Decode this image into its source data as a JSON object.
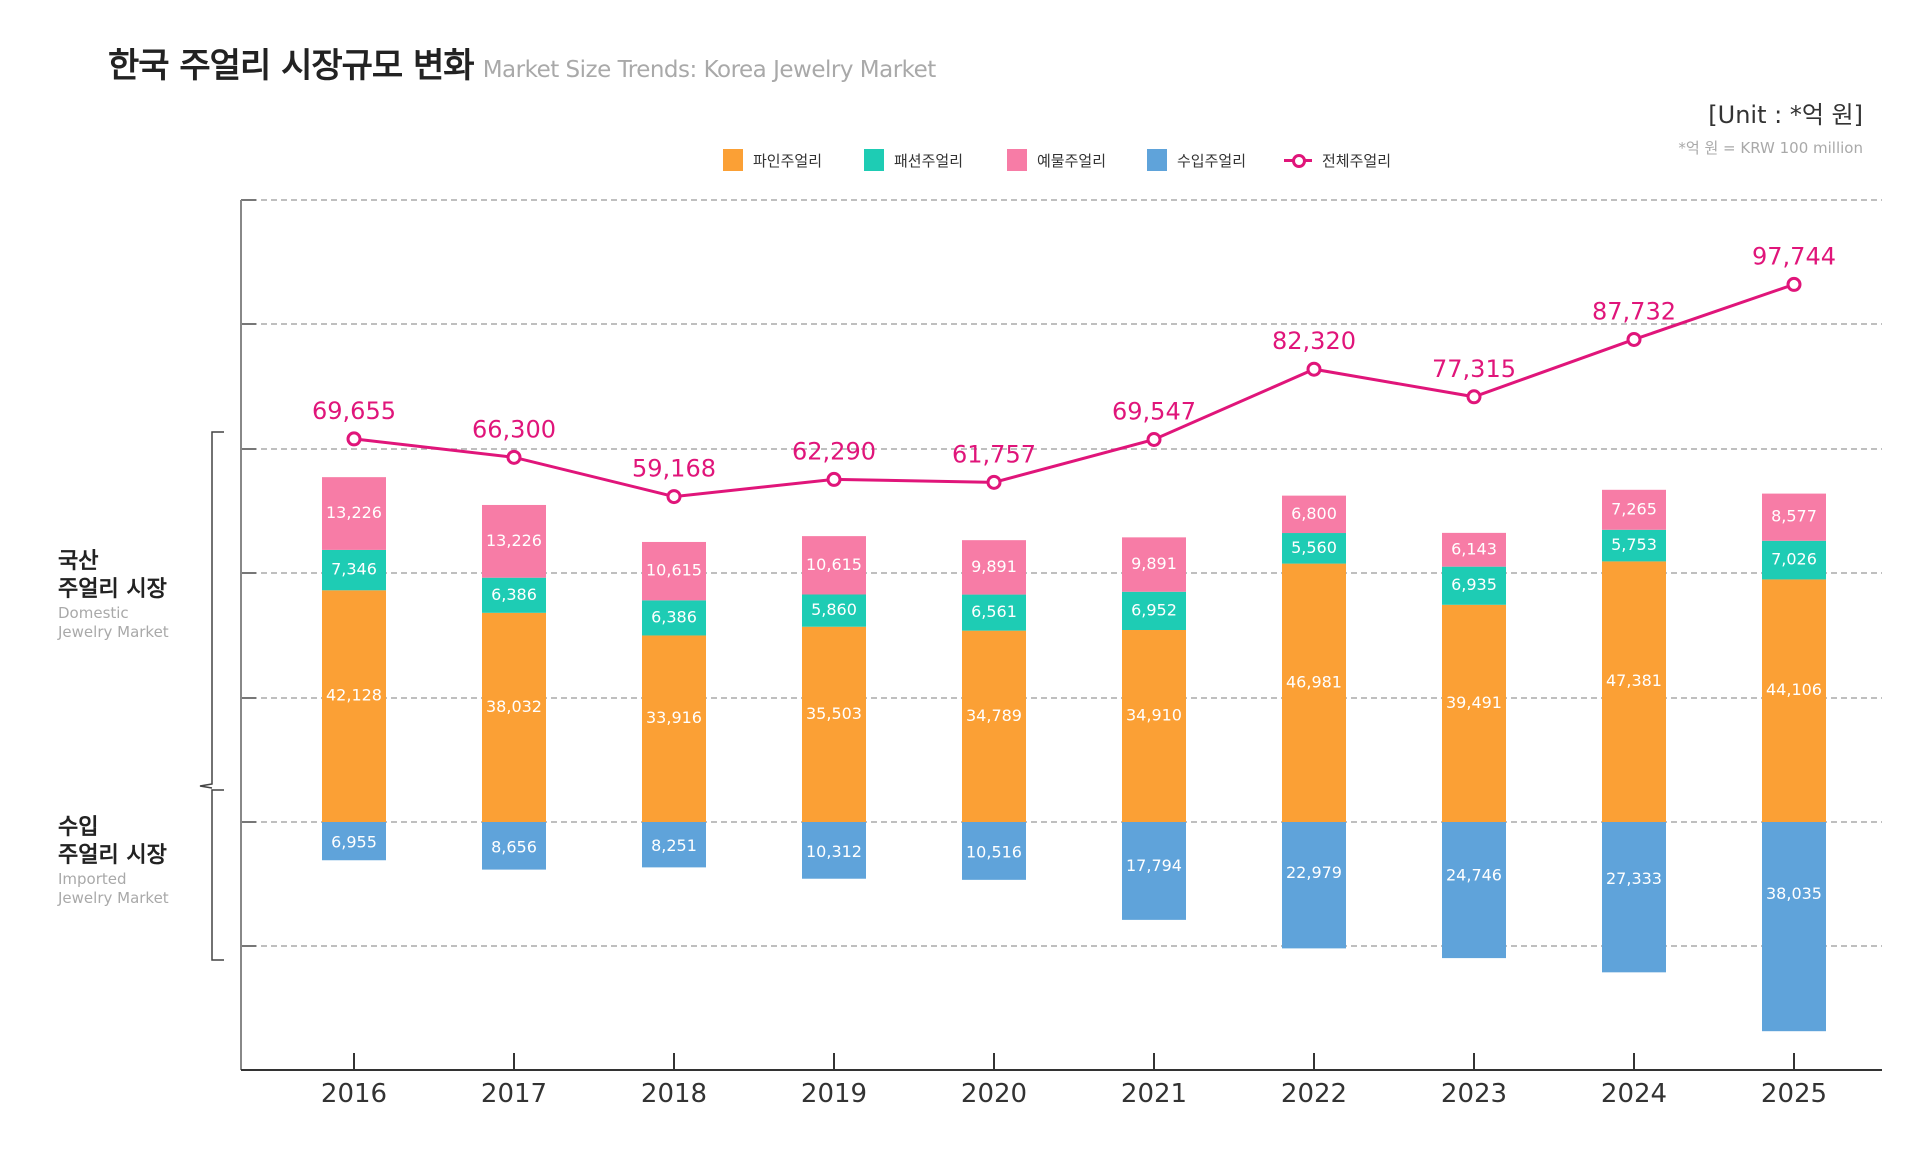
{
  "header": {
    "title_ko": "한국 주얼리 시장규모 변화",
    "title_en": "Market Size Trends: Korea Jewelry Market",
    "unit": "[Unit : *억 원]",
    "unit_note": "*억 원 = KRW 100 million"
  },
  "side_labels": {
    "domestic": {
      "ko_line1": "국산",
      "ko_line2": "주얼리 시장",
      "en_line1": "Domestic",
      "en_line2": "Jewelry Market"
    },
    "imported": {
      "ko_line1": "수입",
      "ko_line2": "주얼리 시장",
      "en_line1": "Imported",
      "en_line2": "Jewelry Market"
    }
  },
  "legend": [
    {
      "key": "fine",
      "label": "파인주얼리",
      "color": "#fba035",
      "type": "bar"
    },
    {
      "key": "fashion",
      "label": "패션주얼리",
      "color": "#1eccb4",
      "type": "bar"
    },
    {
      "key": "gift",
      "label": "예물주얼리",
      "color": "#f77ca6",
      "type": "bar"
    },
    {
      "key": "imported",
      "label": "수입주얼리",
      "color": "#5fa3da",
      "type": "bar"
    },
    {
      "key": "total",
      "label": "전체주얼리",
      "color": "#e0157a",
      "type": "line"
    }
  ],
  "chart_data": {
    "type": "bar",
    "subtype": "stacked bar (domestic above zero, imported below zero) with total line",
    "title": "한국 주얼리 시장규모 변화 — Market Size Trends: Korea Jewelry Market",
    "unit": "억 원 (KRW 100 million)",
    "categories": [
      "2016",
      "2017",
      "2018",
      "2019",
      "2020",
      "2021",
      "2022",
      "2023",
      "2024",
      "2025"
    ],
    "series": [
      {
        "name": "파인주얼리",
        "key": "fine",
        "values": [
          42128,
          38032,
          33916,
          35503,
          34789,
          34910,
          46981,
          39491,
          47381,
          44106
        ]
      },
      {
        "name": "패션주얼리",
        "key": "fashion",
        "values": [
          7346,
          6386,
          6386,
          5860,
          6561,
          6952,
          5560,
          6935,
          5753,
          7026
        ]
      },
      {
        "name": "예물주얼리",
        "key": "gift",
        "values": [
          13226,
          13226,
          10615,
          10615,
          9891,
          9891,
          6800,
          6143,
          7265,
          8577
        ]
      },
      {
        "name": "수입주얼리",
        "key": "imported",
        "values": [
          6955,
          8656,
          8251,
          10312,
          10516,
          17794,
          22979,
          24746,
          27333,
          38035
        ]
      },
      {
        "name": "전체주얼리",
        "key": "total",
        "type": "line",
        "values": [
          69655,
          66300,
          59168,
          62290,
          61757,
          69547,
          82320,
          77315,
          87732,
          97744
        ]
      }
    ],
    "value_labels": {
      "fine": [
        "42,128",
        "38,032",
        "33,916",
        "35,503",
        "34,789",
        "34,910",
        "46,981",
        "39,491",
        "47,381",
        "44,106"
      ],
      "fashion": [
        "7,346",
        "6,386",
        "6,386",
        "5,860",
        "6,561",
        "6,952",
        "5,560",
        "6,935",
        "5,753",
        "7,026"
      ],
      "gift": [
        "13,226",
        "13,226",
        "10,615",
        "10,615",
        "9,891",
        "9,891",
        "6,800",
        "6,143",
        "7,265",
        "8,577"
      ],
      "imported": [
        "6,955",
        "8,656",
        "8,251",
        "10,312",
        "10,516",
        "17,794",
        "22,979",
        "24,746",
        "27,333",
        "38,035"
      ],
      "total": [
        "69,655",
        "66,300",
        "59,168",
        "62,290",
        "61,757",
        "69,547",
        "82,320",
        "77,315",
        "87,732",
        "97,744"
      ]
    },
    "xlabel": "",
    "ylabel": "",
    "ylim": [
      -45000,
      113000
    ],
    "grid": true,
    "legend_position": "top-center"
  }
}
